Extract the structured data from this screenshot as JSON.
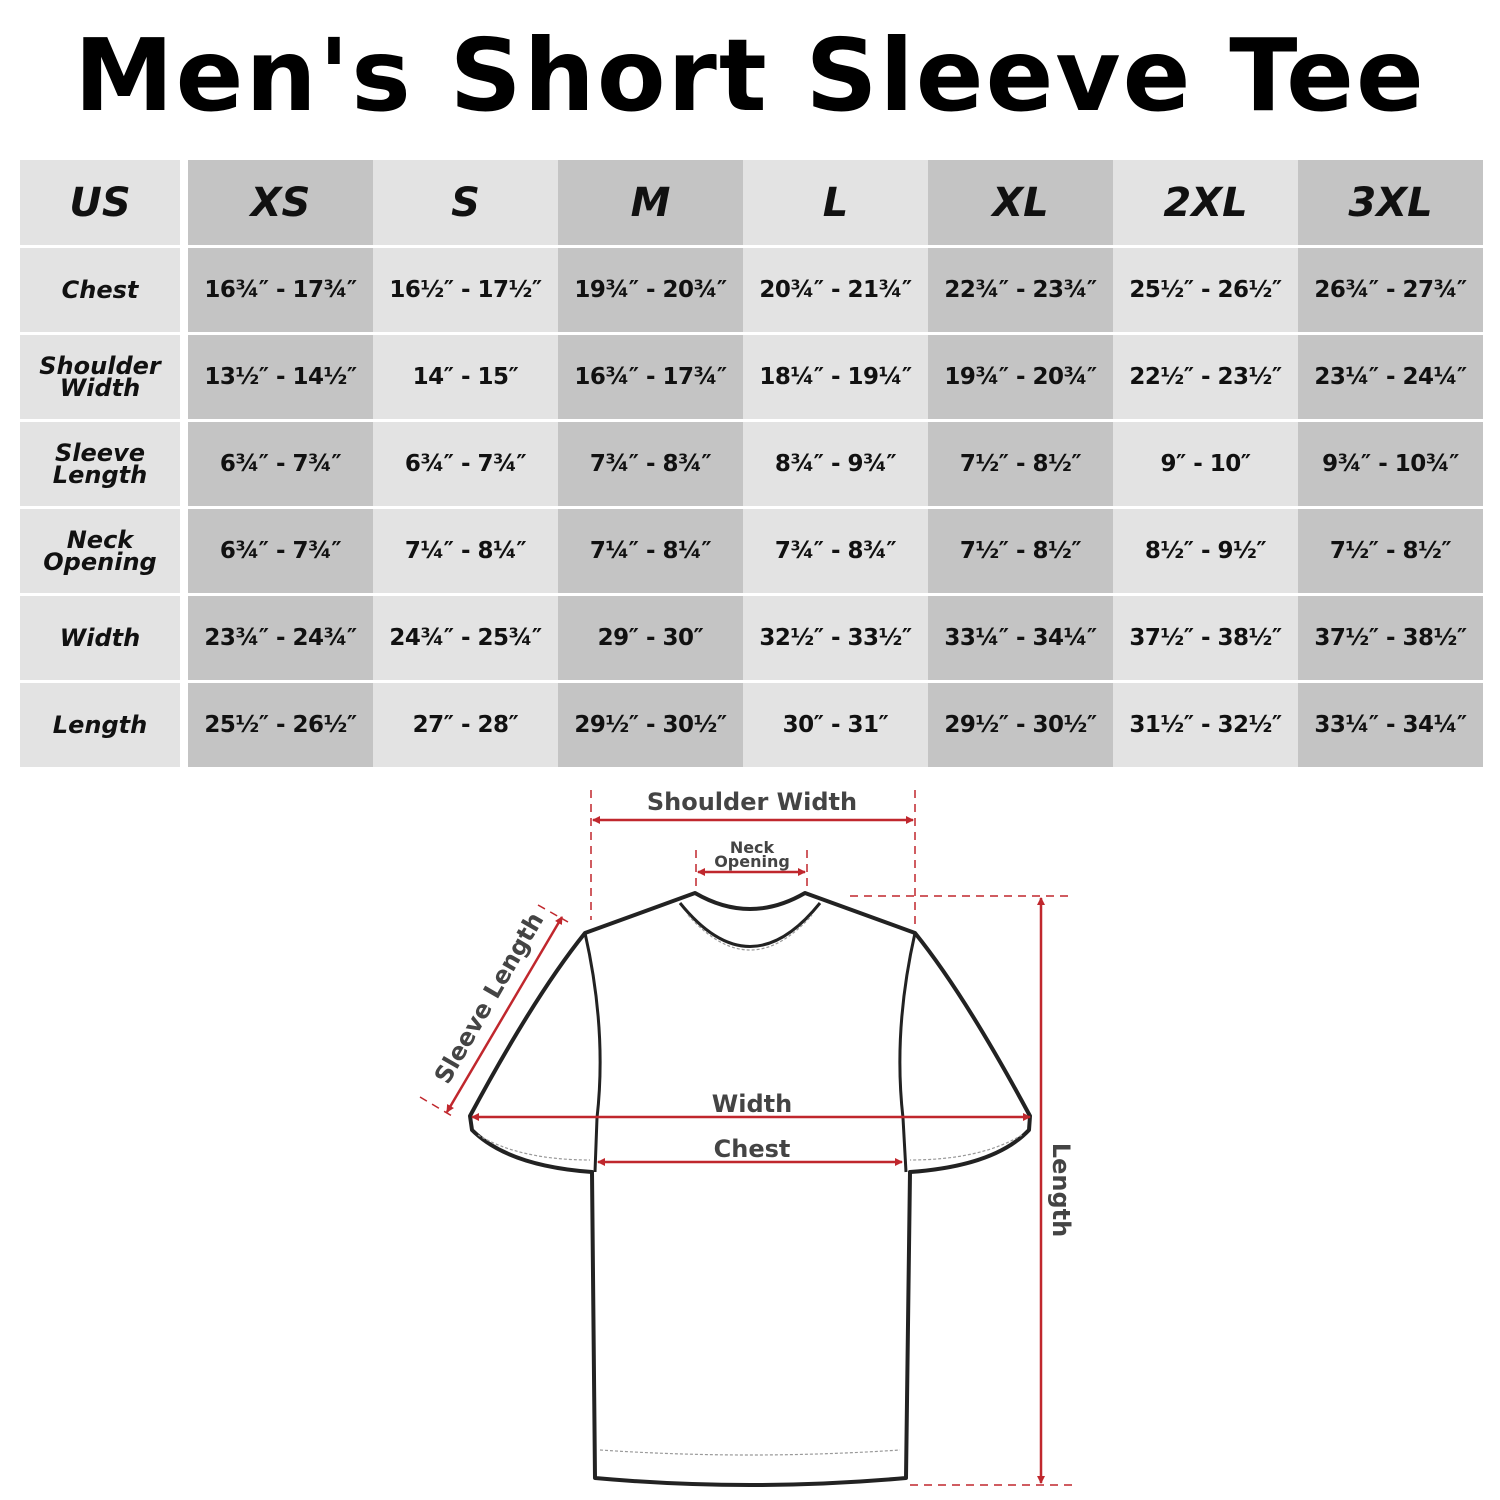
{
  "title": "Men's Short Sleeve Tee",
  "table": {
    "corner": "US",
    "sizes": [
      "XS",
      "S",
      "M",
      "L",
      "XL",
      "2XL",
      "3XL"
    ],
    "rows": [
      {
        "label": "Chest",
        "values": [
          "16¾″ - 17¾″",
          "16½″ - 17½″",
          "19¾″ - 20¾″",
          "20¾″ - 21¾″",
          "22¾″ - 23¾″",
          "25½″ - 26½″",
          "26¾″ - 27¾″"
        ]
      },
      {
        "label": "Shoulder Width",
        "values": [
          "13½″ - 14½″",
          "14″ - 15″",
          "16¾″ - 17¾″",
          "18¼″ - 19¼″",
          "19¾″ - 20¾″",
          "22½″ - 23½″",
          "23¼″ - 24¼″"
        ]
      },
      {
        "label": "Sleeve Length",
        "values": [
          "6¾″ - 7¾″",
          "6¾″ - 7¾″",
          "7¾″ - 8¾″",
          "8¾″ - 9¾″",
          "7½″ - 8½″",
          "9″ - 10″",
          "9¾″ - 10¾″"
        ]
      },
      {
        "label": "Neck Opening",
        "values": [
          "6¾″ - 7¾″",
          "7¼″ - 8¼″",
          "7¼″ - 8¼″",
          "7¾″ - 8¾″",
          "7½″ - 8½″",
          "8½″ - 9½″",
          "7½″ - 8½″"
        ]
      },
      {
        "label": "Width",
        "values": [
          "23¾″ - 24¾″",
          "24¾″ - 25¾″",
          "29″ - 30″",
          "32½″ - 33½″",
          "33¼″ - 34¼″",
          "37½″ - 38½″",
          "37½″ - 38½″"
        ]
      },
      {
        "label": "Length",
        "values": [
          "25½″ - 26½″",
          "27″ - 28″",
          "29½″ - 30½″",
          "30″ - 31″",
          "29½″ - 30½″",
          "31½″ - 32½″",
          "33¼″ - 34¼″"
        ]
      }
    ]
  },
  "diagram": {
    "shoulder_width": "Shoulder Width",
    "neck_line1": "Neck",
    "neck_line2": "Opening",
    "sleeve_length": "Sleeve Length",
    "width": "Width",
    "chest": "Chest",
    "length": "Length",
    "arrow_color": "#c0272d"
  }
}
